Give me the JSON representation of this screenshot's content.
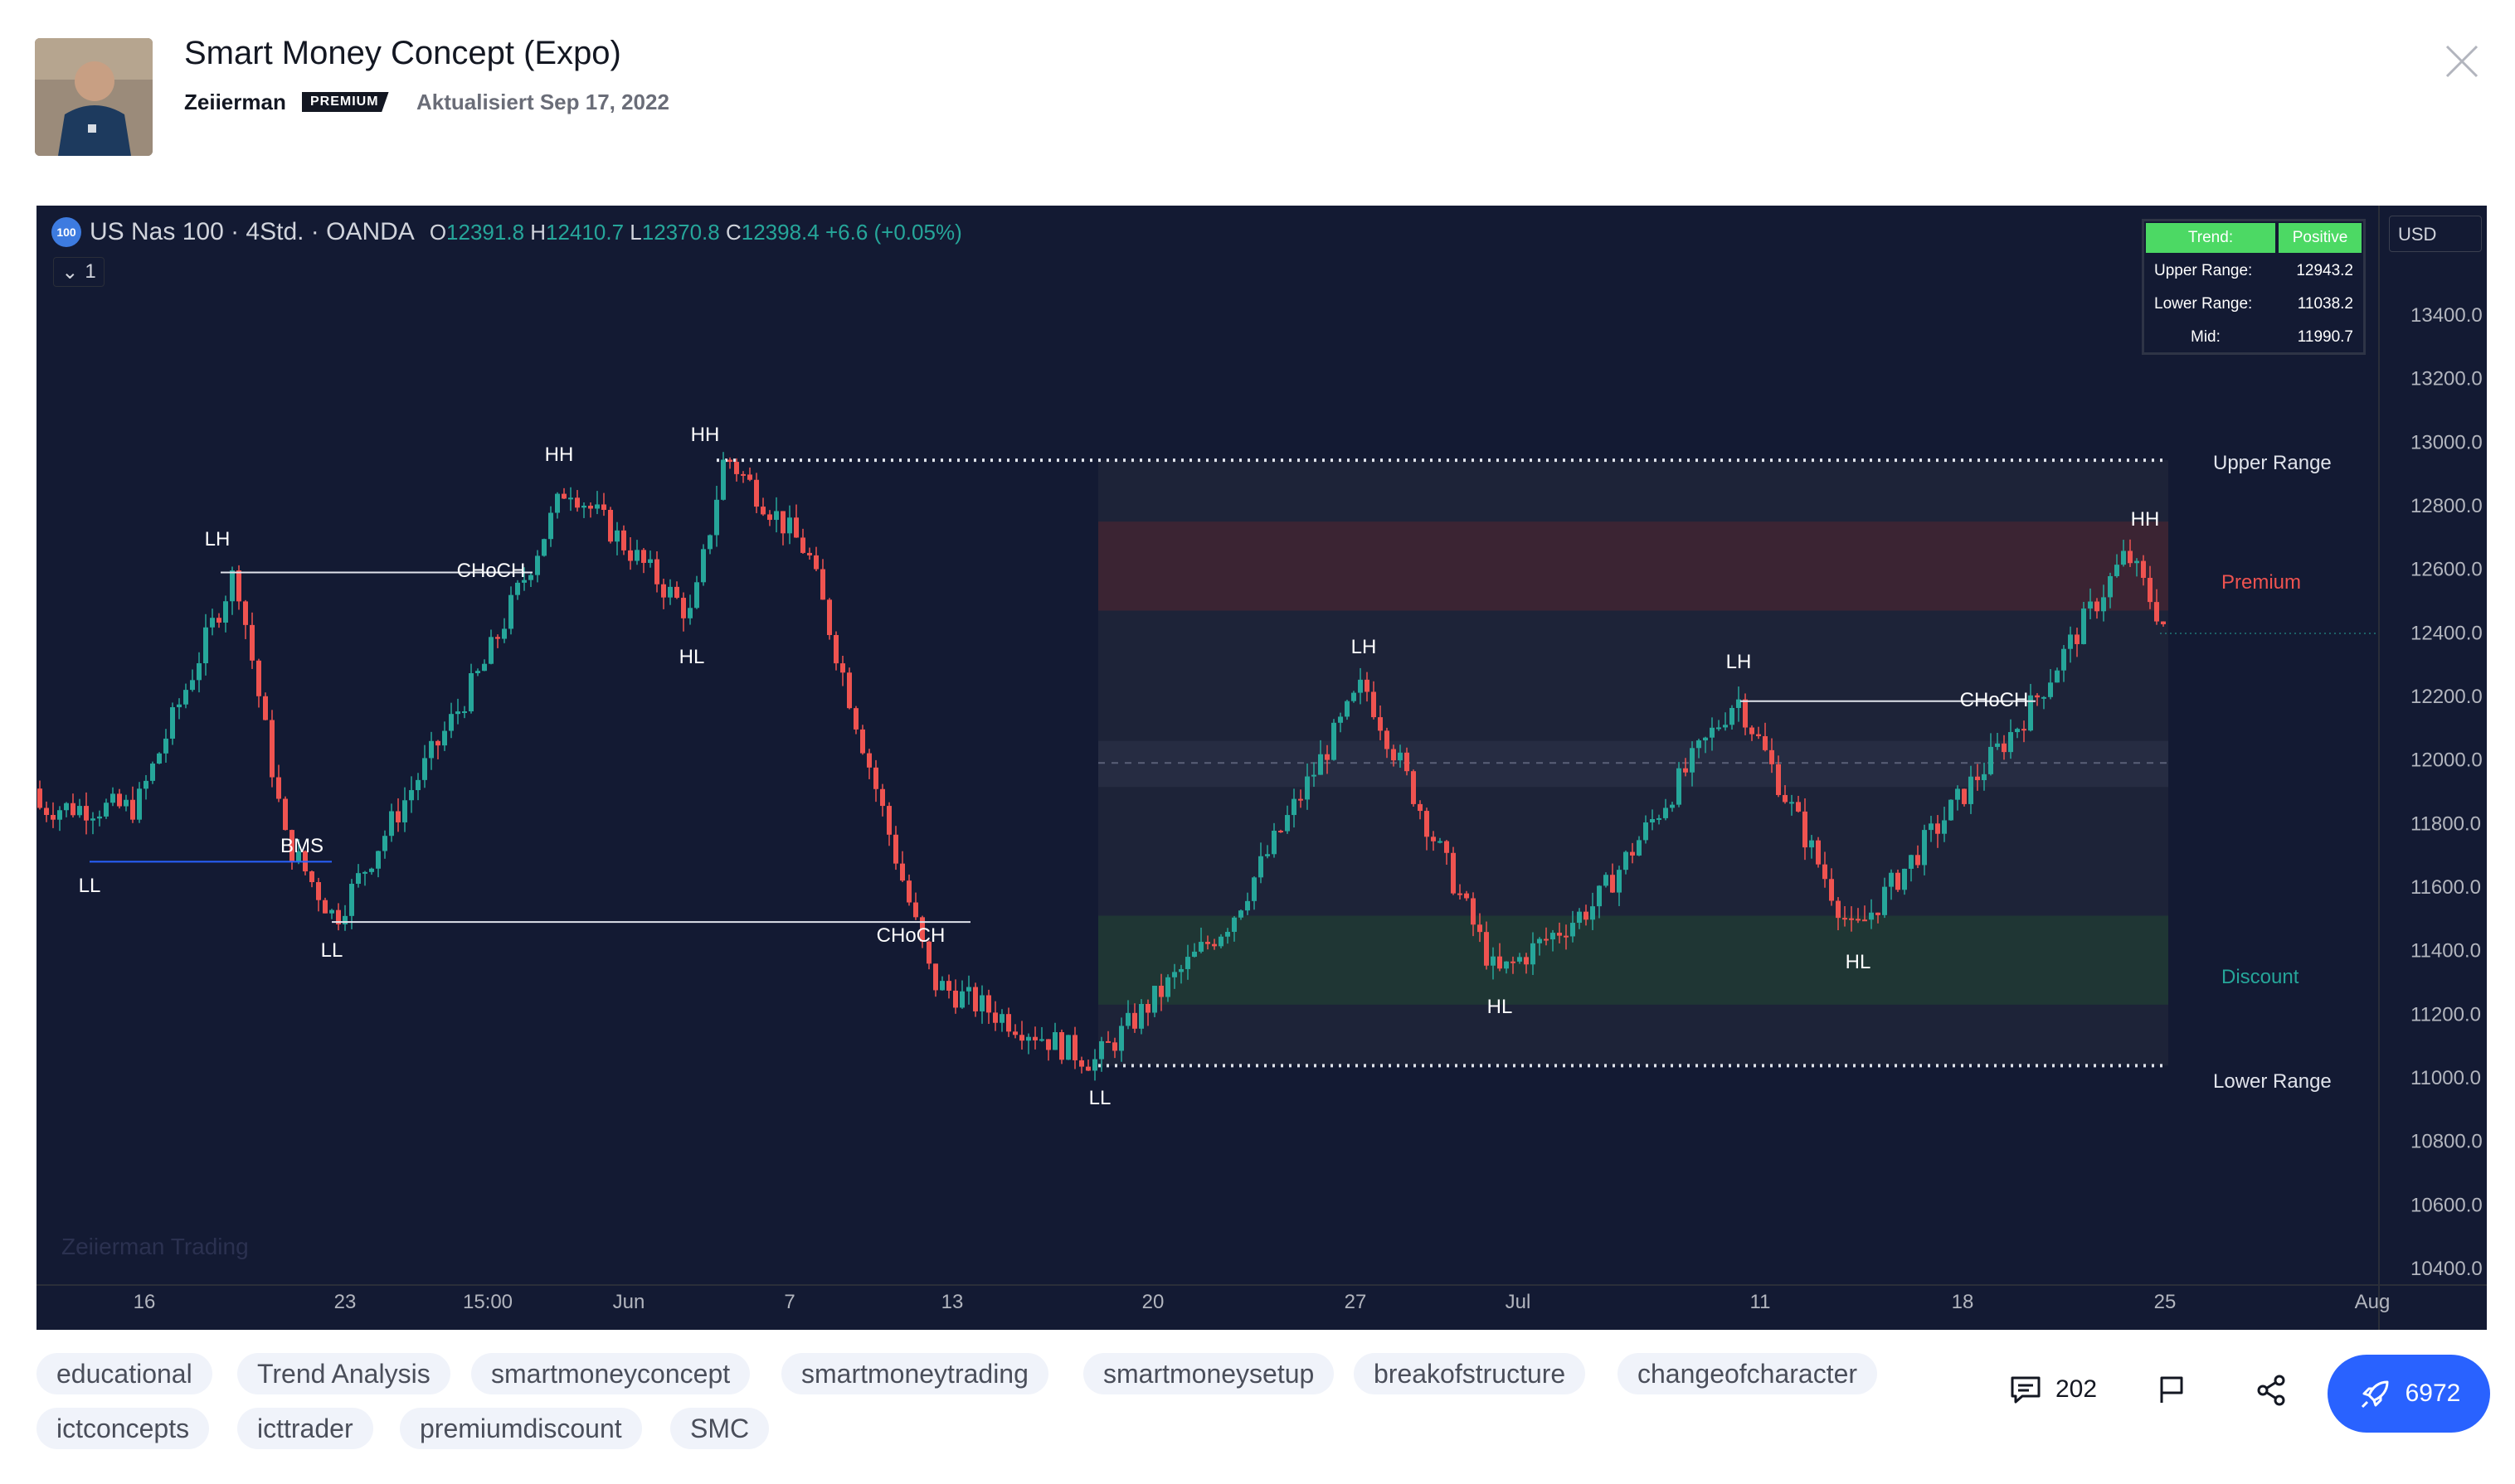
{
  "header": {
    "title": "Smart Money Concept (Expo)",
    "author": "Zeiierman",
    "badge": "PREMIUM",
    "updated": "Aktualisiert Sep 17, 2022"
  },
  "chart_header": {
    "badge": "100",
    "symbol": "US Nas 100 · 4Std. · OANDA",
    "o_label": "O",
    "o_value": "12391.8",
    "h_label": "H",
    "h_value": "12410.7",
    "l_label": "L",
    "l_value": "12370.8",
    "c_label": "C",
    "c_value": "12398.4",
    "change": "+6.6 (+0.05%)",
    "collapse_count": "1",
    "currency": "USD",
    "watermark": "Zeiierman Trading"
  },
  "info_table": {
    "trend_label": "Trend:",
    "trend_value": "Positive",
    "upper_label": "Upper Range:",
    "upper_value": "12943.2",
    "lower_label": "Lower Range:",
    "lower_value": "11038.2",
    "mid_label": "Mid:",
    "mid_value": "11990.7"
  },
  "chart_data": {
    "type": "line",
    "series_style": "candlestick",
    "y_ticks": [
      "13400.0",
      "13200.0",
      "13000.0",
      "12800.0",
      "12600.0",
      "12400.0",
      "12200.0",
      "12000.0",
      "11800.0",
      "11600.0",
      "11400.0",
      "11200.0",
      "11000.0",
      "10800.0",
      "10600.0",
      "10400.0"
    ],
    "x_ticks": [
      "16",
      "23",
      "15:00",
      "Jun",
      "7",
      "13",
      "20",
      "27",
      "Jul",
      "11",
      "18",
      "25",
      "Aug"
    ],
    "ylim": [
      10400,
      13400
    ],
    "close_approx": [
      {
        "x": "16",
        "y": 11850
      },
      {
        "x": "LH",
        "y": 12600
      },
      {
        "x": "BMS",
        "y": 11750
      },
      {
        "x": "23",
        "y": 11500
      },
      {
        "x": "15:00",
        "y": 12300
      },
      {
        "x": "HH",
        "y": 12870
      },
      {
        "x": "HL",
        "y": 12450
      },
      {
        "x": "HH",
        "y": 12960
      },
      {
        "x": "7",
        "y": 12650
      },
      {
        "x": "13",
        "y": 11300
      },
      {
        "x": "LL",
        "y": 11050
      },
      {
        "x": "20",
        "y": 11500
      },
      {
        "x": "LH",
        "y": 12240
      },
      {
        "x": "HL",
        "y": 11320
      },
      {
        "x": "Jul",
        "y": 11550
      },
      {
        "x": "LH",
        "y": 12200
      },
      {
        "x": "HL",
        "y": 11450
      },
      {
        "x": "18",
        "y": 12150
      },
      {
        "x": "HH",
        "y": 12650
      },
      {
        "x": "25",
        "y": 12398.4
      }
    ],
    "annotations": [
      "LH",
      "CHoCH",
      "HH",
      "HH",
      "HL",
      "LL",
      "BMS",
      "LL",
      "CHoCH",
      "LL",
      "LH",
      "HL",
      "LH",
      "CHoCH",
      "HL",
      "HH"
    ],
    "zones": {
      "upper_range": "Upper Range",
      "premium": "Premium",
      "discount": "Discount",
      "lower_range": "Lower Range"
    },
    "colors": {
      "up": "#26a69a",
      "down": "#ef5350",
      "bg": "#131a33",
      "premium": "#ef5350",
      "discount": "#26a69a"
    }
  },
  "tags": [
    "educational",
    "Trend Analysis",
    "smartmoneyconcept",
    "smartmoneytrading",
    "smartmoneysetup",
    "breakofstructure",
    "changeofcharacter",
    "ictconcepts",
    "icttrader",
    "premiumdiscount",
    "SMC"
  ],
  "actions": {
    "comments": "202",
    "boosts": "6972"
  }
}
